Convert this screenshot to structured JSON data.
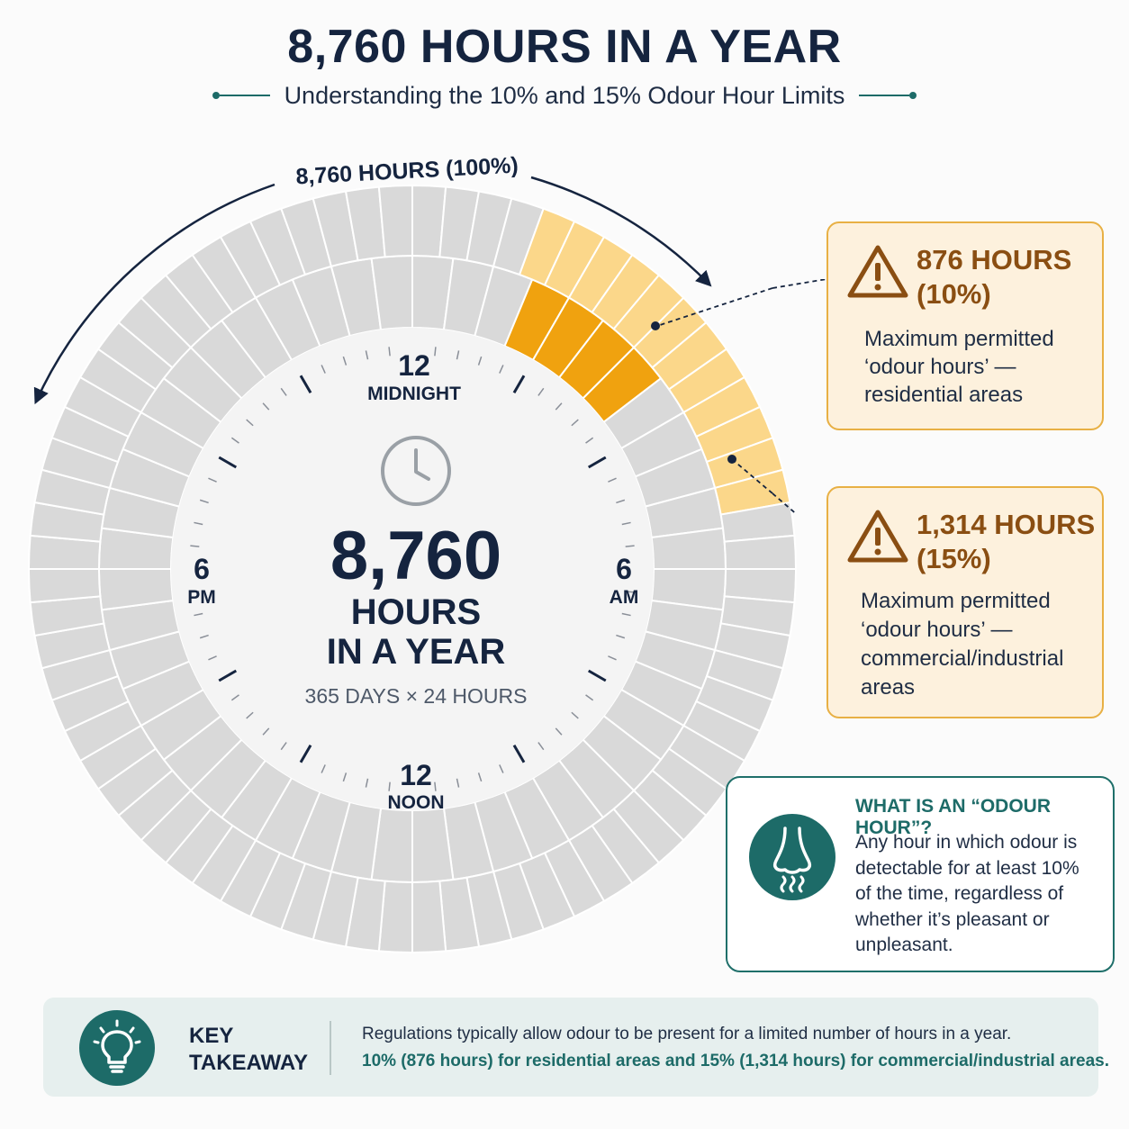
{
  "header": {
    "title": "8,760 HOURS IN A YEAR",
    "subtitle": "Understanding the 10% and 15% Odour Hour Limits"
  },
  "wheel": {
    "arc_label": "8,760 HOURS (100%)",
    "clock_labels": {
      "top_number": "12",
      "top_word": "MIDNIGHT",
      "bottom_number": "12",
      "bottom_word": "NOON",
      "left_number": "6",
      "left_word": "PM",
      "right_number": "6",
      "right_word": "AM"
    },
    "center": {
      "big_number": "8,760",
      "line1": "HOURS",
      "line2": "IN A YEAR",
      "formula": "365 DAYS × 24 HOURS"
    },
    "colors": {
      "base": "#d9d9d9",
      "limit_10": "#f0a20f",
      "limit_15": "#fbd78a",
      "accent": "#1d6b68"
    },
    "share_10_percent": 10,
    "share_15_percent": 15,
    "icon": "clock-icon"
  },
  "limits": [
    {
      "hours": "876 HOURS",
      "percent": "(10%)",
      "line1": "Maximum permitted",
      "line2": "‘odour hours’ —",
      "line3": "residential areas",
      "line4": "",
      "icon": "warning-icon"
    },
    {
      "hours": "1,314 HOURS",
      "percent": "(15%)",
      "line1": "Maximum permitted",
      "line2": "‘odour hours’ —",
      "line3": "commercial/industrial",
      "line4": "areas",
      "icon": "warning-icon"
    }
  ],
  "odour_info": {
    "title": "WHAT IS AN “ODOUR HOUR”?",
    "lines": [
      "Any hour in which odour is",
      "detectable for at least 10%",
      "of the time, regardless of",
      "whether it’s pleasant or",
      "unpleasant."
    ],
    "icon": "nose-icon"
  },
  "takeaway": {
    "label_line1": "KEY",
    "label_line2": "TAKEAWAY",
    "line1": "Regulations typically allow odour to be present for a limited number of hours in a year.",
    "line2": "10% (876 hours) for residential areas and 15% (1,314 hours) for commercial/industrial areas.",
    "icon": "lightbulb-icon"
  }
}
